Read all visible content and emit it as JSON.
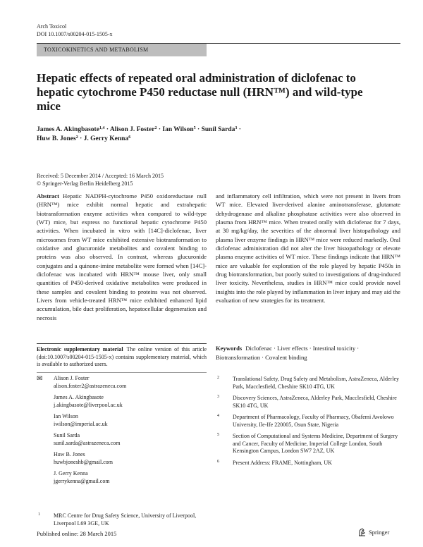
{
  "header": {
    "journal": "Arch Toxicol",
    "doi": "DOI 10.1007/s00204-015-1505-x",
    "section": "TOXICOKINETICS AND METABOLISM"
  },
  "title": "Hepatic effects of repeated oral administration of diclofenac to hepatic cytochrome P450 reductase null (HRN™) and wild-type mice",
  "authors": [
    {
      "name": "James A. Akingbasote",
      "aff": "1,4"
    },
    {
      "name": "Alison J. Foster",
      "aff": "2"
    },
    {
      "name": "Ian Wilson",
      "aff": "5"
    },
    {
      "name": "Sunil Sarda",
      "aff": "3"
    },
    {
      "name": "Huw B. Jones",
      "aff": "2"
    },
    {
      "name": "J. Gerry Kenna",
      "aff": "6"
    }
  ],
  "dates": {
    "received": "Received: 5 December 2014 / Accepted: 16 March 2015",
    "copyright": "© Springer-Verlag Berlin Heidelberg 2015"
  },
  "abstract": {
    "label": "Abstract",
    "left": "Hepatic NADPH-cytochrome P450 oxidoreductase null (HRN™) mice exhibit normal hepatic and extrahepatic biotransformation enzyme activities when compared to wild-type (WT) mice, but express no functional hepatic cytochrome P450 activities. When incubated in vitro with [14C]-diclofenac, liver microsomes from WT mice exhibited extensive biotransformation to oxidative and glucuronide metabolites and covalent binding to proteins was also observed. In contrast, whereas glucuronide conjugates and a quinone-imine metabolite were formed when [14C]-diclofenac was incubated with HRN™ mouse liver, only small quantities of P450-derived oxidative metabolites were produced in these samples and covalent binding to proteins was not observed. Livers from vehicle-treated HRN™ mice exhibited enhanced lipid accumulation, bile duct proliferation, hepatocellular degeneration and necrosis",
    "right": "and inflammatory cell infiltration, which were not present in livers from WT mice. Elevated liver-derived alanine aminotransferase, glutamate dehydrogenase and alkaline phosphatase activities were also observed in plasma from HRN™ mice. When treated orally with diclofenac for 7 days, at 30 mg/kg/day, the severities of the abnormal liver histopathology and plasma liver enzyme findings in HRN™ mice were reduced markedly. Oral diclofenac administration did not alter the liver histopathology or elevate plasma enzyme activities of WT mice. These findings indicate that HRN™ mice are valuable for exploration of the role played by hepatic P450s in drug biotransformation, but poorly suited to investigations of drug-induced liver toxicity. Nevertheless, studies in HRN™ mice could provide novel insights into the role played by inflammation in liver injury and may aid the evaluation of new strategies for its treatment."
  },
  "esm": {
    "label": "Electronic supplementary material",
    "text": "The online version of this article (doi:10.1007/s00204-015-1505-x) contains supplementary material, which is available to authorized users."
  },
  "contacts": [
    {
      "name": "Alison J. Foster",
      "email": "alison.foster2@astrazeneca.com"
    },
    {
      "name": "James A. Akingbasote",
      "email": "j.akingbasote@liverpool.ac.uk"
    },
    {
      "name": "Ian Wilson",
      "email": "iwilson@imperial.ac.uk"
    },
    {
      "name": "Sunil Sarda",
      "email": "sunil.sarda@astrazeneca.com"
    },
    {
      "name": "Huw B. Jones",
      "email": "huwbjoneshb@gmail.com"
    },
    {
      "name": "J. Gerry Kenna",
      "email": "jgerrykenna@gmail.com"
    }
  ],
  "keywords": {
    "label": "Keywords",
    "text": "Diclofenac · Liver effects · Intestinal toxicity · Biotransformation · Covalent binding"
  },
  "affiliations": [
    {
      "num": "1",
      "text": "MRC Centre for Drug Safety Science, University of Liverpool, Liverpool L69 3GE, UK"
    },
    {
      "num": "2",
      "text": "Translational Safety, Drug Safety and Metabolism, AstraZeneca, Alderley Park, Macclesfield, Cheshire SK10 4TG, UK"
    },
    {
      "num": "3",
      "text": "Discovery Sciences, AstraZeneca, Alderley Park, Macclesfield, Cheshire SK10 4TG, UK"
    },
    {
      "num": "4",
      "text": "Department of Pharmacology, Faculty of Pharmacy, Obafemi Awolowo University, Ile-Ife 220005, Osun State, Nigeria"
    },
    {
      "num": "5",
      "text": "Section of Computational and Systems Medicine, Department of Surgery and Cancer, Faculty of Medicine, Imperial College London, South Kensington Campus, London SW7 2AZ, UK"
    },
    {
      "num": "6",
      "text": "Present Address: FRAME, Nottingham, UK"
    }
  ],
  "footer": {
    "published": "Published online: 28 March 2015",
    "publisher": "Springer"
  },
  "icons": {
    "contact": "envelope-icon",
    "publisher": "springer-horse-logo-icon"
  }
}
